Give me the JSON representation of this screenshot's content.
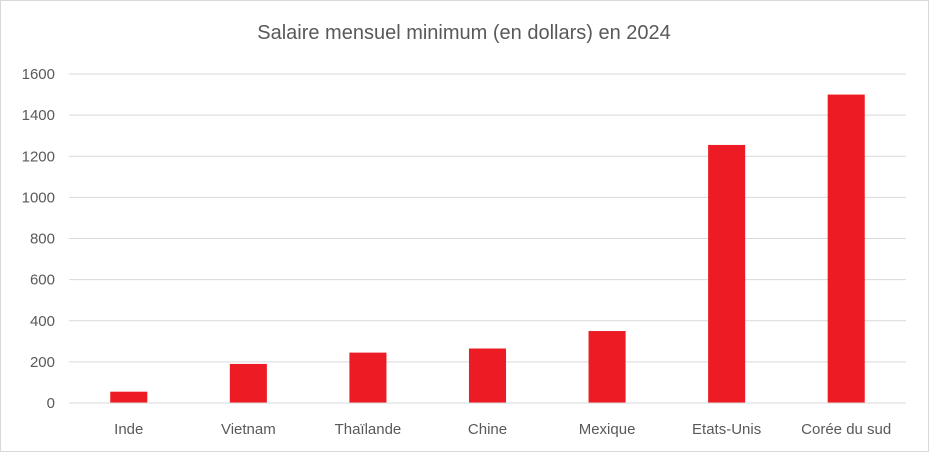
{
  "chart_data": {
    "type": "bar",
    "title": "Salaire mensuel minimum (en dollars) en 2024",
    "xlabel": "",
    "ylabel": "",
    "categories": [
      "Inde",
      "Vietnam",
      "Thaïlande",
      "Chine",
      "Mexique",
      "Etats-Unis",
      "Corée du sud"
    ],
    "values": [
      55,
      190,
      245,
      265,
      350,
      1255,
      1500
    ],
    "ylim": [
      0,
      1600
    ],
    "yticks": [
      0,
      200,
      400,
      600,
      800,
      1000,
      1200,
      1400,
      1600
    ],
    "grid": true,
    "legend": "none",
    "bar_color": "#ed1c24",
    "grid_color": "#d9d9d9",
    "text_color": "#595959"
  }
}
